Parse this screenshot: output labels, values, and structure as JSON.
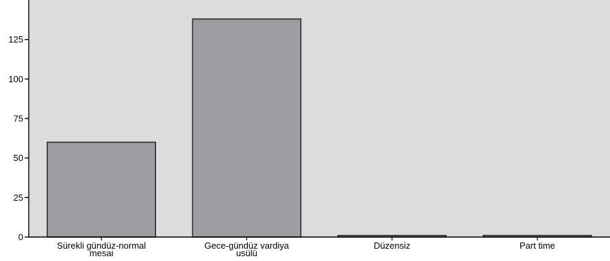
{
  "chart_data": {
    "type": "bar",
    "categories": [
      [
        "Sürekli gündüz-normal",
        "mesai"
      ],
      [
        "Gece-gündüz vardiya",
        "usülü"
      ],
      [
        "Düzensiz"
      ],
      [
        "Part time"
      ]
    ],
    "values": [
      60,
      138,
      1,
      1
    ],
    "yticks": [
      0,
      25,
      50,
      75,
      100,
      125
    ],
    "ylim": [
      0,
      150
    ],
    "title": "",
    "xlabel": "",
    "ylabel": "",
    "grid": false,
    "colors": {
      "plot_background": "#dcdcde",
      "bar_fill": "#9d9ea2",
      "bar_stroke": "#2a2a2a",
      "axis": "#000000"
    }
  }
}
